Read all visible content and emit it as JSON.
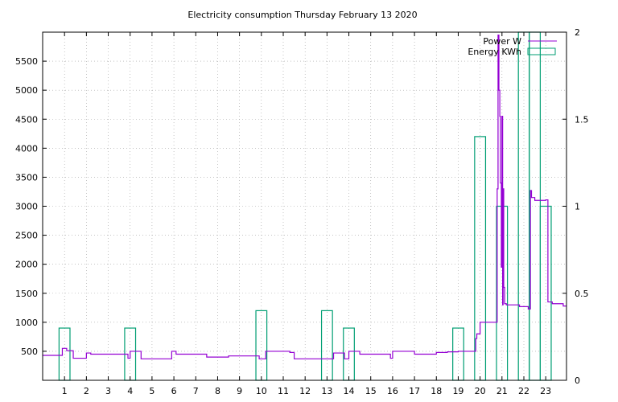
{
  "chart_data": {
    "type": "line",
    "title": "Electricity consumption Thursday February 13 2020",
    "xlim": [
      0,
      23.95
    ],
    "xticks": [
      1,
      2,
      3,
      4,
      5,
      6,
      7,
      8,
      9,
      10,
      11,
      12,
      13,
      14,
      15,
      16,
      17,
      18,
      19,
      20,
      21,
      22,
      23
    ],
    "ylim": [
      0,
      6000
    ],
    "yticks": [
      500,
      1000,
      1500,
      2000,
      2500,
      3000,
      3500,
      4000,
      4500,
      5000,
      5500
    ],
    "y2lim": [
      0,
      2
    ],
    "y2ticks": [
      "0",
      "0.5",
      "1",
      "1.5",
      "2"
    ],
    "grid": true,
    "legend_position": "top-right",
    "series": [
      {
        "name": "Power W",
        "axis": "y1",
        "color": "#9400d3",
        "style": "steps",
        "x": [
          0,
          0.9,
          1.1,
          1.4,
          2.0,
          2.2,
          2.5,
          3.0,
          3.5,
          3.9,
          4.0,
          4.2,
          4.5,
          5.0,
          5.5,
          5.9,
          6.1,
          6.5,
          7.0,
          7.5,
          8.0,
          8.5,
          9.0,
          9.5,
          9.9,
          10.2,
          10.5,
          11.0,
          11.3,
          11.5,
          12.0,
          12.5,
          13.0,
          13.3,
          13.8,
          14.0,
          14.5,
          15.0,
          15.5,
          15.9,
          16.0,
          16.5,
          17.0,
          17.5,
          18.0,
          18.5,
          19.0,
          19.6,
          19.8,
          19.85,
          20.0,
          20.3,
          20.5,
          20.75,
          20.78,
          20.82,
          20.86,
          20.9,
          20.93,
          20.97,
          21.0,
          21.03,
          21.05,
          21.08,
          21.12,
          21.2,
          21.3,
          21.5,
          21.8,
          22.0,
          22.2,
          22.3,
          22.35,
          22.5,
          22.7,
          23.0,
          23.1,
          23.3,
          23.5,
          23.8,
          23.95
        ],
        "y": [
          430,
          550,
          510,
          380,
          470,
          450,
          450,
          450,
          450,
          380,
          500,
          500,
          370,
          370,
          370,
          500,
          450,
          450,
          450,
          400,
          400,
          420,
          420,
          420,
          370,
          500,
          500,
          500,
          480,
          370,
          370,
          370,
          370,
          470,
          370,
          500,
          450,
          450,
          450,
          380,
          500,
          500,
          450,
          450,
          480,
          490,
          500,
          500,
          720,
          800,
          1000,
          1000,
          1000,
          1000,
          3300,
          5950,
          5000,
          4550,
          3400,
          1950,
          4550,
          1300,
          3300,
          1600,
          1320,
          1300,
          1300,
          1300,
          1270,
          1270,
          1230,
          3270,
          3150,
          3100,
          3100,
          3110,
          1350,
          1320,
          1320,
          1280,
          1280
        ]
      },
      {
        "name": "Energy KWh",
        "axis": "y2",
        "color": "#009e73",
        "style": "boxes",
        "x": [
          1,
          4,
          10,
          13,
          14,
          19,
          20,
          21,
          22,
          22.5,
          23
        ],
        "y": [
          0.3,
          0.3,
          0.4,
          0.4,
          0.3,
          0.3,
          1.4,
          1.0,
          2.0,
          2.0,
          1.0
        ]
      }
    ]
  }
}
